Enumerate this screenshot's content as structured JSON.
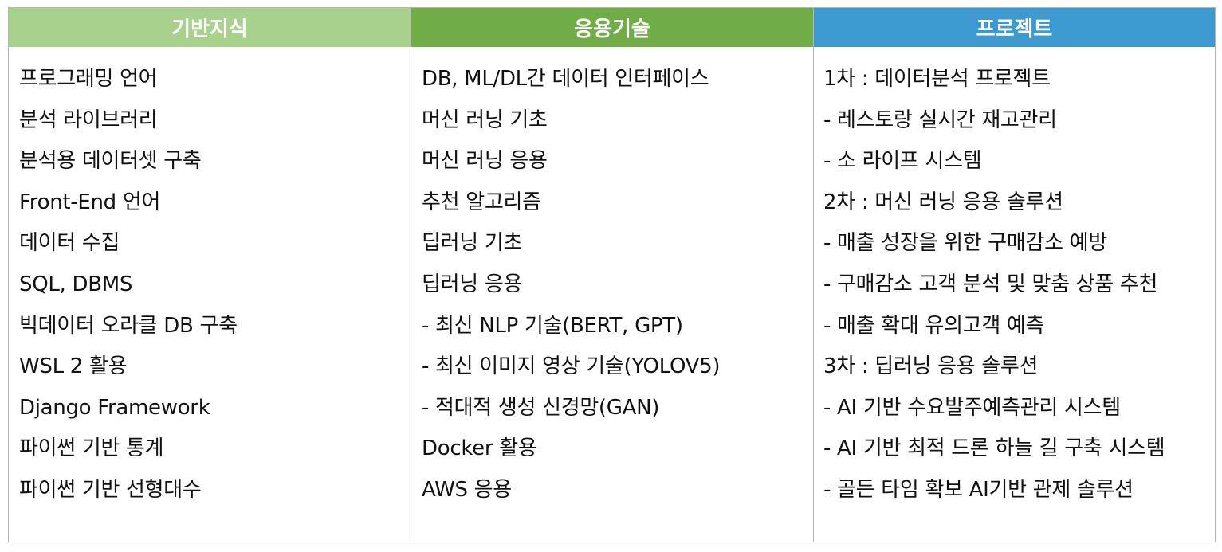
{
  "columns": [
    {
      "header": "기반지식",
      "header_color": "#a8d18d",
      "items": [
        "프로그래밍 언어",
        "분석 라이브러리",
        "분석용 데이터셋 구축",
        "Front-End 언어",
        "데이터 수집",
        "SQL, DBMS",
        "빅데이터 오라클 DB 구축",
        "WSL 2 활용",
        "Django Framework",
        "파이썬 기반 통계",
        "파이썬 기반 선형대수"
      ]
    },
    {
      "header": "응용기술",
      "header_color": "#70ad47",
      "items": [
        "DB, ML/DL간 데이터 인터페이스",
        "머신 러닝 기초",
        "머신 러닝 응용",
        "추천 알고리즘",
        "딥러닝 기초",
        "딥러닝 응용",
        "- 최신 NLP 기술(BERT, GPT)",
        "- 최신 이미지 영상 기술(YOLOV5)",
        "- 적대적 생성 신경망(GAN)",
        "Docker 활용",
        "AWS 응용"
      ]
    },
    {
      "header": "프로젝트",
      "header_color": "#3c9ad0",
      "items": [
        "1차 : 데이터분석 프로젝트",
        "- 레스토랑 실시간 재고관리",
        "- 소 라이프 시스템",
        "2차 : 머신 러닝 응용 솔루션",
        "- 매출 성장을 위한 구매감소 예방",
        "- 구매감소 고객 분석 및 맞춤 상품 추천",
        "- 매출 확대 유의고객 예측",
        "3차 : 딥러닝 응용 솔루션",
        "- AI 기반 수요발주예측관리 시스템",
        "- AI 기반 최적 드론 하늘 길 구축 시스템",
        "- 골든 타임 확보 AI기반 관제 솔루션"
      ]
    }
  ]
}
